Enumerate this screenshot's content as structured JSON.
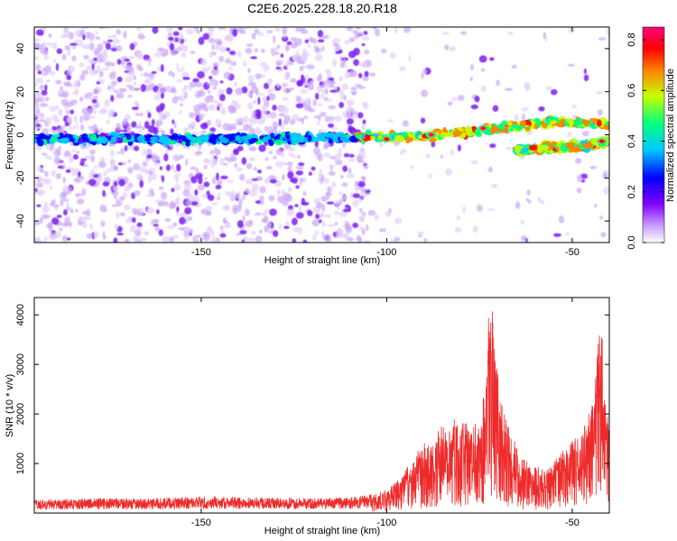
{
  "title": "C2E6.2025.228.18.20.R18",
  "chart_data": [
    {
      "type": "heatmap",
      "xlabel": "Height of straight line (km)",
      "ylabel": "Frequency (Hz)",
      "xlim": [
        -195,
        -40
      ],
      "ylim": [
        -50,
        50
      ],
      "xticks": [
        -150,
        -100,
        -50
      ],
      "yticks": [
        -40,
        -20,
        0,
        20,
        40
      ],
      "colorbar": {
        "label": "Normalized spectral amplitude",
        "range": [
          0,
          0.85
        ],
        "ticks": [
          0.0,
          0.2,
          0.4,
          0.6,
          0.8
        ],
        "colormap": [
          "#ffffff",
          "#8000ff",
          "#0000ff",
          "#00c8ff",
          "#00ff80",
          "#c8ff00",
          "#ff8000",
          "#ff0000",
          "#ff0080"
        ]
      },
      "ridges": [
        {
          "x": [
            -195,
            -150,
            -105,
            -95,
            -85,
            -75,
            -65,
            -55,
            -45,
            -40
          ],
          "freq": [
            -2,
            -2,
            -1,
            -1,
            0,
            2,
            4,
            6,
            5,
            5
          ]
        },
        {
          "x": [
            -65,
            -55,
            -45,
            -40
          ],
          "freq": [
            -7,
            -6,
            -5,
            -3
          ]
        }
      ],
      "peaks": [
        {
          "x": -88,
          "freq": 0,
          "amplitude": 0.85
        },
        {
          "x": -74,
          "freq": 3,
          "amplitude": 0.8
        },
        {
          "x": -42,
          "freq": -3,
          "amplitude": 0.75
        },
        {
          "x": -100,
          "freq": -2,
          "amplitude": 0.7
        }
      ]
    },
    {
      "type": "line",
      "xlabel": "Height of straight line (km)",
      "ylabel": "SNR (10 * v/v)",
      "xlim": [
        -195,
        -40
      ],
      "ylim": [
        0,
        4350
      ],
      "xticks": [
        -150,
        -100,
        -50
      ],
      "yticks": [
        1000,
        2000,
        3000,
        4000
      ],
      "color": "#ee2b2b",
      "series": [
        {
          "x": [
            -195,
            -180,
            -165,
            -150,
            -135,
            -120,
            -108,
            -104,
            -100,
            -96,
            -93,
            -90,
            -87,
            -85,
            -82,
            -79,
            -76,
            -74,
            -73,
            -72.5,
            -72,
            -71,
            -69,
            -67,
            -65,
            -62,
            -60,
            -57,
            -55,
            -53,
            -50,
            -48,
            -46,
            -44,
            -43,
            -42.5,
            -42,
            -41,
            -40
          ],
          "y": [
            200,
            230,
            220,
            260,
            240,
            230,
            250,
            320,
            420,
            650,
            1000,
            1250,
            1350,
            1650,
            1750,
            1600,
            1600,
            2100,
            3100,
            3900,
            4300,
            3000,
            2000,
            1500,
            1200,
            900,
            850,
            800,
            900,
            1100,
            1300,
            1400,
            1700,
            2300,
            3000,
            3550,
            3200,
            2200,
            1500
          ]
        }
      ]
    }
  ]
}
